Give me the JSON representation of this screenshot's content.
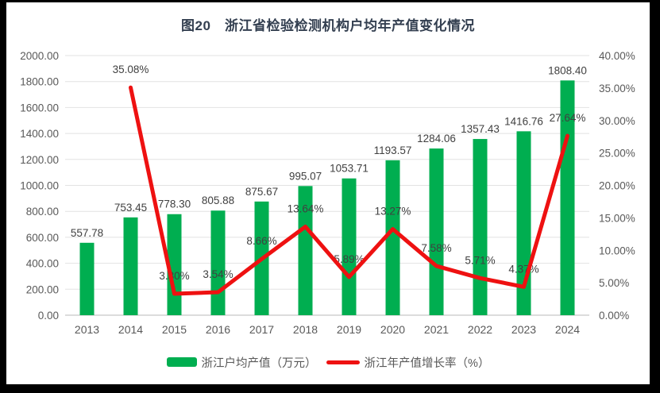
{
  "title": "图20　浙江省检验检测机构户均年产值变化情况",
  "colors": {
    "bar": "#00AE50",
    "line": "#EE1111",
    "grid": "#E2E2E2",
    "axis_line": "#C6C6C6",
    "tick_text": "#595959",
    "data_label_text": "#404040",
    "title_text": "#333F50",
    "frame": "#000000",
    "background": "#FFFFFF"
  },
  "chart_data": {
    "type": "bar+line combo",
    "title": "图20　浙江省检验检测机构户均年产值变化情况",
    "categories": [
      "2013",
      "2014",
      "2015",
      "2016",
      "2017",
      "2018",
      "2019",
      "2020",
      "2021",
      "2022",
      "2023",
      "2024"
    ],
    "series": [
      {
        "name": "浙江户均产值（万元）",
        "type": "bar",
        "axis": "left",
        "color": "#00AE50",
        "values": [
          557.78,
          753.45,
          778.3,
          805.88,
          875.67,
          995.07,
          1053.71,
          1193.57,
          1284.06,
          1357.43,
          1416.76,
          1808.4
        ],
        "labels": [
          "557.78",
          "753.45",
          "778.30",
          "805.88",
          "875.67",
          "995.07",
          "1053.71",
          "1193.57",
          "1284.06",
          "1357.43",
          "1416.76",
          "1808.40"
        ]
      },
      {
        "name": "浙江年产值增长率（%）",
        "type": "line",
        "axis": "right",
        "color": "#EE1111",
        "values": [
          null,
          35.08,
          3.3,
          3.54,
          8.66,
          13.64,
          5.89,
          13.27,
          7.58,
          5.71,
          4.37,
          27.64
        ],
        "labels": [
          null,
          "35.08%",
          "3.30%",
          "3.54%",
          "8.66%",
          "13.64%",
          "5.89%",
          "13.27%",
          "7.58%",
          "5.71%",
          "4.37%",
          "27.64%"
        ]
      }
    ],
    "left_axis": {
      "min": 0,
      "max": 2000,
      "step": 200,
      "labels": [
        "2000.00",
        "1800.00",
        "1600.00",
        "1400.00",
        "1200.00",
        "1000.00",
        "800.00",
        "600.00",
        "400.00",
        "200.00",
        "0.00"
      ]
    },
    "right_axis": {
      "min": 0,
      "max": 40,
      "step": 5,
      "labels": [
        "40.00%",
        "35.00%",
        "30.00%",
        "25.00%",
        "20.00%",
        "15.00%",
        "10.00%",
        "5.00%",
        "0.00%"
      ]
    },
    "grid": true,
    "legend_position": "bottom"
  },
  "legend": {
    "items": [
      {
        "label": "浙江户均产值（万元）",
        "swatch": "bar",
        "color": "#00AE50"
      },
      {
        "label": "浙江年产值增长率（%）",
        "swatch": "line",
        "color": "#EE1111"
      }
    ]
  }
}
